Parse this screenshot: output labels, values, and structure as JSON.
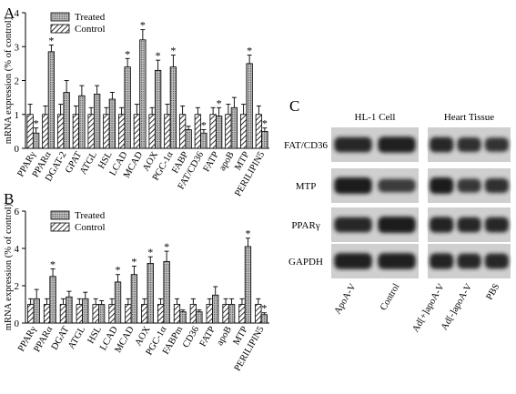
{
  "panels": {
    "a": {
      "letter": "A"
    },
    "b": {
      "letter": "B"
    },
    "c": {
      "letter": "C"
    }
  },
  "colors": {
    "ink": "#000000",
    "treated_fill": "#bdbdbd",
    "blot_bg": "#cfcfcf",
    "band": "#1c1c1c"
  },
  "chart_data": [
    {
      "type": "bar",
      "panel": "A",
      "ylabel": "mRNA expression (% of control)",
      "ylim": [
        0,
        4
      ],
      "yticks": [
        "0",
        "1",
        "2",
        "3",
        "4"
      ],
      "legend": {
        "position": "top-left",
        "entries": [
          "Treated",
          "Control"
        ]
      },
      "categories": [
        "PPARγ",
        "PPARα",
        "DGAT-2",
        "GPAT",
        "ATGL",
        "HSL",
        "LCAD",
        "MCAD",
        "AOX",
        "PGC-1α",
        "FABP",
        "FAT/CD36",
        "FATP",
        "apoB",
        "MTP",
        "PERILIPIN5"
      ],
      "series": [
        {
          "name": "Control",
          "values": [
            1,
            1,
            1,
            1,
            1,
            1,
            1,
            1,
            1,
            1,
            1,
            1,
            1,
            1,
            1,
            1
          ],
          "errors": [
            0.3,
            0.25,
            0.3,
            0.25,
            0.2,
            0.2,
            0.2,
            0.3,
            0.2,
            0.3,
            0.25,
            0.2,
            0.2,
            0.3,
            0.3,
            0.25
          ]
        },
        {
          "name": "Treated",
          "values": [
            0.45,
            2.85,
            1.65,
            1.55,
            1.6,
            1.45,
            2.4,
            3.2,
            2.3,
            2.4,
            0.55,
            0.45,
            0.95,
            1.2,
            2.5,
            0.5
          ],
          "errors": [
            0.15,
            0.2,
            0.35,
            0.3,
            0.25,
            0.2,
            0.25,
            0.3,
            0.3,
            0.35,
            0.1,
            0.1,
            0.25,
            0.3,
            0.25,
            0.1
          ]
        }
      ],
      "significant_treated": [
        true,
        true,
        false,
        false,
        false,
        false,
        true,
        true,
        true,
        true,
        false,
        true,
        true,
        false,
        true,
        true
      ],
      "marker": "*"
    },
    {
      "type": "bar",
      "panel": "B",
      "ylabel": "mRNA expression (% of control)",
      "ylim": [
        0,
        6
      ],
      "yticks": [
        "0",
        "2",
        "4",
        "6"
      ],
      "legend": {
        "position": "top-left",
        "entries": [
          "Treated",
          "Control"
        ]
      },
      "categories": [
        "PPARγ",
        "PPARα",
        "DGAT",
        "ATGL",
        "HSL",
        "LCAD",
        "MCAD",
        "AOX",
        "PGC-1α",
        "FABPm",
        "CD36",
        "FATP",
        "apoB",
        "MTP",
        "PERILIPIN5"
      ],
      "series": [
        {
          "name": "Control",
          "values": [
            1,
            1,
            1,
            1,
            1,
            1,
            1,
            1,
            1,
            1,
            1,
            1,
            1,
            1,
            1
          ],
          "errors": [
            0.3,
            0.3,
            0.3,
            0.3,
            0.3,
            0.3,
            0.3,
            0.3,
            0.3,
            0.3,
            0.3,
            0.3,
            0.3,
            0.3,
            0.3
          ]
        },
        {
          "name": "Treated",
          "values": [
            1.3,
            2.5,
            1.4,
            1.3,
            1.0,
            2.2,
            2.6,
            3.2,
            3.3,
            0.6,
            0.6,
            1.5,
            1.0,
            4.1,
            0.45
          ],
          "errors": [
            0.5,
            0.4,
            0.3,
            0.35,
            0.2,
            0.4,
            0.45,
            0.35,
            0.55,
            0.1,
            0.1,
            0.45,
            0.3,
            0.45,
            0.1
          ]
        }
      ],
      "significant_treated": [
        false,
        true,
        false,
        false,
        false,
        true,
        true,
        true,
        true,
        false,
        false,
        false,
        false,
        true,
        true
      ],
      "marker": "*"
    }
  ],
  "blot": {
    "groups": [
      "HL-1 Cell",
      "Heart Tissue"
    ],
    "rows": [
      "FAT/CD36",
      "MTP",
      "PPARγ",
      "GAPDH"
    ],
    "lanes": [
      "ApoA-V",
      "Control",
      "Ad[+]apoA-V",
      "Ad[-]apoA-V",
      "PBS"
    ],
    "band_intensity": [
      [
        0.85,
        0.95,
        0.85,
        0.75,
        0.7
      ],
      [
        1.0,
        0.6,
        1.0,
        0.65,
        0.75
      ],
      [
        0.85,
        1.0,
        0.9,
        0.85,
        0.85
      ],
      [
        0.95,
        0.95,
        0.9,
        0.85,
        0.85
      ]
    ]
  }
}
